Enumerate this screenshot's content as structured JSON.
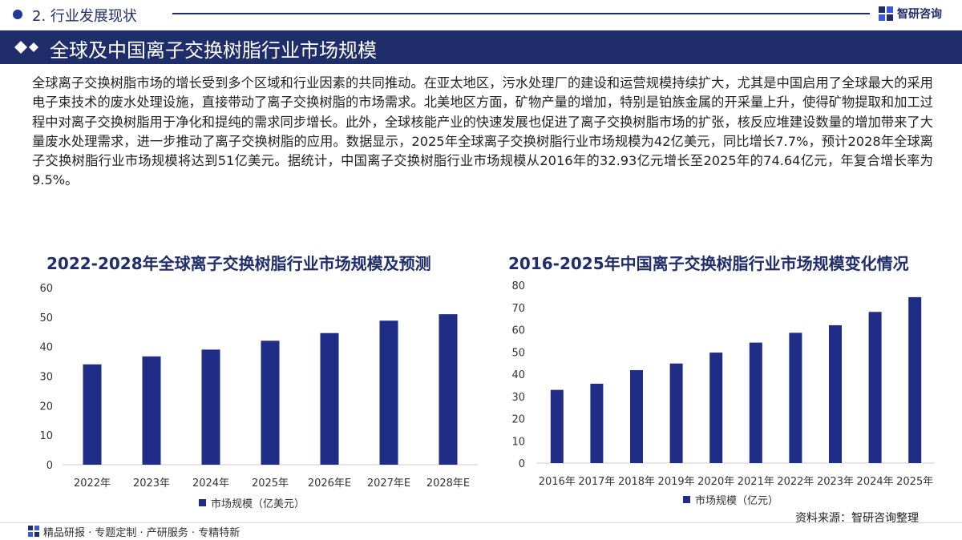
{
  "header": {
    "section": "2. 行业发展现状",
    "brand": "智研咨询",
    "title": "全球及中国离子交换树脂行业市场规模"
  },
  "paragraph": "全球离子交换树脂市场的增长受到多个区域和行业因素的共同推动。在亚太地区，污水处理厂的建设和运营规模持续扩大，尤其是中国启用了全球最大的采用电子束技术的废水处理设施，直接带动了离子交换树脂的市场需求。北美地区方面，矿物产量的增加，特别是铂族金属的开采量上升，使得矿物提取和加工过程中对离子交换树脂用于净化和提纯的需求同步增长。此外，全球核能产业的快速发展也促进了离子交换树脂市场的扩张，核反应堆建设数量的增加带来了大量废水处理需求，进一步推动了离子交换树脂的应用。数据显示，2025年全球离子交换树脂行业市场规模为42亿美元，同比增长7.7%，预计2028年全球离子交换树脂行业市场规模将达到51亿美元。据统计，中国离子交换树脂行业市场规模从2016年的32.93亿元增长至2025年的74.64亿元，年复合增长率为9.5%。",
  "colors": {
    "bar": "#1f2d87",
    "navy": "#1f2d6b"
  },
  "chart_data": [
    {
      "type": "bar",
      "title": "2022-2028年全球离子交换树脂行业市场规模及预测",
      "categories": [
        "2022年",
        "2023年",
        "2024年",
        "2025年",
        "2026年E",
        "2027年E",
        "2028年E"
      ],
      "series": [
        {
          "name": "市场规模（亿美元）",
          "values": [
            34,
            36.7,
            39,
            42,
            44.6,
            48.8,
            51
          ]
        }
      ],
      "ylim": [
        0,
        60
      ],
      "yticks": [
        0,
        10,
        20,
        30,
        40,
        50,
        60
      ],
      "legend": "bottom"
    },
    {
      "type": "bar",
      "title": "2016-2025年中国离子交换树脂行业市场规模变化情况",
      "categories": [
        "2016年",
        "2017年",
        "2018年",
        "2019年",
        "2020年",
        "2021年",
        "2022年",
        "2023年",
        "2024年",
        "2025年"
      ],
      "series": [
        {
          "name": "市场规模（亿元）",
          "values": [
            32.93,
            35.7,
            41.8,
            44.8,
            49.7,
            54.2,
            58.6,
            62,
            68,
            74.64
          ]
        }
      ],
      "ylim": [
        0,
        80
      ],
      "yticks": [
        0,
        10,
        20,
        30,
        40,
        50,
        60,
        70,
        80
      ],
      "legend": "bottom"
    }
  ],
  "source": "资料来源：智研咨询整理",
  "footer": "精品研报 · 专题定制 · 产研服务 · 专精特新"
}
